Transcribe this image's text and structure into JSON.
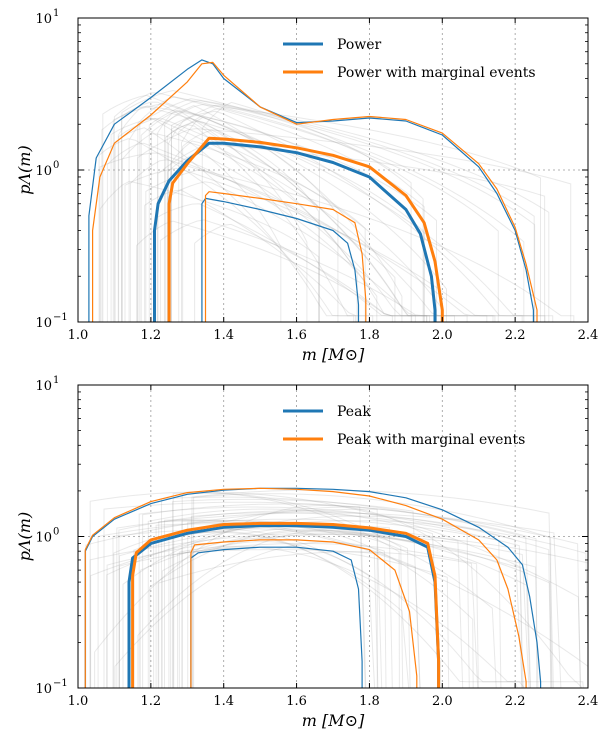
{
  "colors": {
    "blue": "#1f77b4",
    "orange": "#ff7f0e",
    "draws": "#9a9a9a",
    "grid": "#9a9a9a"
  },
  "chart_data": [
    {
      "type": "line",
      "xlabel": "m [M⊙]",
      "ylabel": "pΛ(m)",
      "xlim": [
        1.0,
        2.4
      ],
      "ylim": [
        0.1,
        10
      ],
      "yscale": "log",
      "grid": true,
      "legend_position": "top-right",
      "x_ticks": [
        "1.0",
        "1.2",
        "1.4",
        "1.6",
        "1.8",
        "2.0",
        "2.2",
        "2.4"
      ],
      "series": [
        {
          "name": "Power",
          "color": "blue",
          "role": "median",
          "x": [
            1.21,
            1.21,
            1.22,
            1.25,
            1.3,
            1.36,
            1.4,
            1.5,
            1.6,
            1.7,
            1.8,
            1.9,
            1.94,
            1.97,
            1.98,
            1.98
          ],
          "y": [
            0.1,
            0.4,
            0.6,
            0.85,
            1.15,
            1.5,
            1.5,
            1.42,
            1.3,
            1.12,
            0.9,
            0.55,
            0.38,
            0.2,
            0.12,
            0.1
          ]
        },
        {
          "name": "",
          "color": "blue",
          "role": "upper",
          "x": [
            1.03,
            1.03,
            1.05,
            1.1,
            1.2,
            1.3,
            1.34,
            1.37,
            1.4,
            1.5,
            1.6,
            1.7,
            1.8,
            1.9,
            2.0,
            2.1,
            2.15,
            2.2,
            2.23,
            2.25,
            2.25
          ],
          "y": [
            0.1,
            0.5,
            1.2,
            2.0,
            3.0,
            4.6,
            5.3,
            5.0,
            4.0,
            2.6,
            2.05,
            2.1,
            2.2,
            2.1,
            1.7,
            1.05,
            0.7,
            0.4,
            0.22,
            0.12,
            0.1
          ]
        },
        {
          "name": "",
          "color": "blue",
          "role": "lower",
          "x": [
            1.34,
            1.34,
            1.35,
            1.4,
            1.5,
            1.6,
            1.7,
            1.74,
            1.76,
            1.77,
            1.77
          ],
          "y": [
            0.1,
            0.6,
            0.65,
            0.62,
            0.55,
            0.48,
            0.4,
            0.33,
            0.22,
            0.13,
            0.1
          ]
        },
        {
          "name": "Power with marginal events",
          "color": "orange",
          "role": "median",
          "x": [
            1.25,
            1.25,
            1.26,
            1.3,
            1.36,
            1.4,
            1.5,
            1.6,
            1.7,
            1.8,
            1.9,
            1.95,
            1.98,
            2.0,
            2.0
          ],
          "y": [
            0.1,
            0.6,
            0.82,
            1.1,
            1.62,
            1.6,
            1.52,
            1.4,
            1.25,
            1.05,
            0.68,
            0.45,
            0.25,
            0.12,
            0.1
          ]
        },
        {
          "name": "",
          "color": "orange",
          "role": "upper",
          "x": [
            1.04,
            1.04,
            1.06,
            1.1,
            1.2,
            1.3,
            1.34,
            1.37,
            1.4,
            1.5,
            1.6,
            1.7,
            1.8,
            1.9,
            2.0,
            2.1,
            2.15,
            2.2,
            2.23,
            2.26,
            2.26
          ],
          "y": [
            0.1,
            0.4,
            0.9,
            1.5,
            2.3,
            3.8,
            5.0,
            5.1,
            4.2,
            2.6,
            2.0,
            2.15,
            2.25,
            2.15,
            1.75,
            1.1,
            0.75,
            0.42,
            0.24,
            0.12,
            0.1
          ]
        },
        {
          "name": "",
          "color": "orange",
          "role": "lower",
          "x": [
            1.35,
            1.35,
            1.36,
            1.4,
            1.5,
            1.6,
            1.7,
            1.76,
            1.78,
            1.79,
            1.79
          ],
          "y": [
            0.1,
            0.68,
            0.72,
            0.7,
            0.65,
            0.6,
            0.55,
            0.45,
            0.28,
            0.14,
            0.1
          ]
        }
      ],
      "posterior_draws": {
        "shape": "power",
        "count": 45
      }
    },
    {
      "type": "line",
      "xlabel": "m [M⊙]",
      "ylabel": "pΛ(m)",
      "xlim": [
        1.0,
        2.4
      ],
      "ylim": [
        0.1,
        10
      ],
      "yscale": "log",
      "grid": true,
      "legend_position": "top-right",
      "x_ticks": [
        "1.0",
        "1.2",
        "1.4",
        "1.6",
        "1.8",
        "2.0",
        "2.2",
        "2.4"
      ],
      "series": [
        {
          "name": "Peak",
          "color": "blue",
          "role": "median",
          "x": [
            1.14,
            1.14,
            1.15,
            1.2,
            1.3,
            1.4,
            1.5,
            1.6,
            1.7,
            1.8,
            1.9,
            1.96,
            1.98,
            1.99,
            1.99
          ],
          "y": [
            0.1,
            0.5,
            0.72,
            0.9,
            1.05,
            1.15,
            1.18,
            1.18,
            1.15,
            1.1,
            1.0,
            0.85,
            0.5,
            0.15,
            0.1
          ]
        },
        {
          "name": "",
          "color": "blue",
          "role": "upper",
          "x": [
            1.02,
            1.02,
            1.04,
            1.1,
            1.2,
            1.3,
            1.4,
            1.5,
            1.6,
            1.7,
            1.8,
            1.9,
            2.0,
            2.1,
            2.18,
            2.22,
            2.24,
            2.26,
            2.27,
            2.27
          ],
          "y": [
            0.1,
            0.8,
            1.0,
            1.3,
            1.65,
            1.9,
            2.02,
            2.08,
            2.08,
            2.05,
            1.98,
            1.8,
            1.5,
            1.15,
            0.85,
            0.65,
            0.4,
            0.2,
            0.11,
            0.1
          ]
        },
        {
          "name": "",
          "color": "blue",
          "role": "lower",
          "x": [
            1.31,
            1.31,
            1.33,
            1.4,
            1.5,
            1.6,
            1.7,
            1.75,
            1.77,
            1.78,
            1.78
          ],
          "y": [
            0.1,
            0.72,
            0.78,
            0.82,
            0.85,
            0.85,
            0.8,
            0.7,
            0.45,
            0.15,
            0.1
          ]
        },
        {
          "name": "Peak with marginal events",
          "color": "orange",
          "role": "median",
          "x": [
            1.15,
            1.15,
            1.16,
            1.2,
            1.3,
            1.4,
            1.5,
            1.6,
            1.7,
            1.8,
            1.9,
            1.96,
            1.98,
            1.99,
            1.99
          ],
          "y": [
            0.1,
            0.55,
            0.78,
            0.95,
            1.1,
            1.2,
            1.22,
            1.22,
            1.2,
            1.14,
            1.05,
            0.9,
            0.55,
            0.15,
            0.1
          ]
        },
        {
          "name": "",
          "color": "orange",
          "role": "upper",
          "x": [
            1.02,
            1.02,
            1.04,
            1.1,
            1.2,
            1.3,
            1.4,
            1.5,
            1.6,
            1.7,
            1.8,
            1.9,
            2.0,
            2.1,
            2.15,
            2.18,
            2.21,
            2.23,
            2.23
          ],
          "y": [
            0.1,
            0.82,
            1.02,
            1.33,
            1.7,
            1.95,
            2.05,
            2.08,
            2.05,
            1.98,
            1.85,
            1.6,
            1.3,
            0.95,
            0.7,
            0.45,
            0.22,
            0.11,
            0.1
          ]
        },
        {
          "name": "",
          "color": "orange",
          "role": "lower",
          "x": [
            1.31,
            1.31,
            1.32,
            1.4,
            1.5,
            1.6,
            1.7,
            1.8,
            1.87,
            1.91,
            1.93,
            1.93
          ],
          "y": [
            0.1,
            0.78,
            0.88,
            0.92,
            0.95,
            0.95,
            0.92,
            0.82,
            0.6,
            0.32,
            0.12,
            0.1
          ]
        }
      ],
      "posterior_draws": {
        "shape": "peak",
        "count": 45
      }
    }
  ]
}
